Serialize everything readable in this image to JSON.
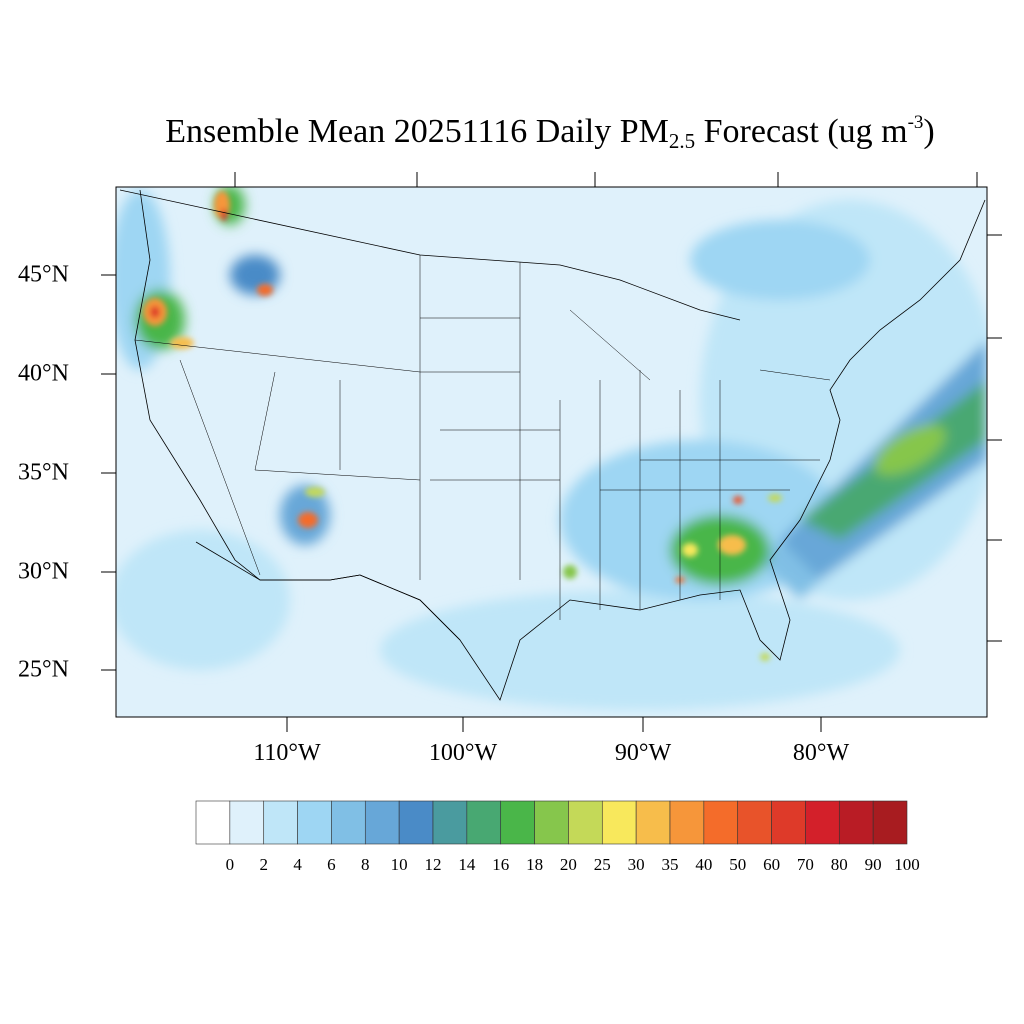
{
  "title": {
    "prefix": "Ensemble Mean 20251116 Daily PM",
    "subscript": "2.5",
    "middle": " Forecast (ug m",
    "superscript": "-3",
    "suffix": ")"
  },
  "map": {
    "region": "Contiguous United States",
    "background_color": "#dff1fb",
    "lat_labels": [
      "45°N",
      "40°N",
      "35°N",
      "30°N",
      "25°N"
    ],
    "lon_labels": [
      "110°W",
      "100°W",
      "90°W",
      "80°W"
    ]
  },
  "colorbar": {
    "labels": [
      "0",
      "2",
      "4",
      "6",
      "8",
      "10",
      "12",
      "14",
      "16",
      "18",
      "20",
      "25",
      "30",
      "35",
      "40",
      "50",
      "60",
      "70",
      "80",
      "90",
      "100"
    ],
    "colors": [
      "#ffffff",
      "#dff1fb",
      "#bfe6f8",
      "#9ed6f3",
      "#80bfe5",
      "#67a7d8",
      "#4a8bc7",
      "#4a9b9f",
      "#48a872",
      "#4ab649",
      "#86c64c",
      "#c4d958",
      "#f8e85c",
      "#f7bd4b",
      "#f6963a",
      "#f46c2a",
      "#e8532a",
      "#de3a29",
      "#d3202a",
      "#b91c25",
      "#a81c20",
      "#8e1519"
    ]
  }
}
